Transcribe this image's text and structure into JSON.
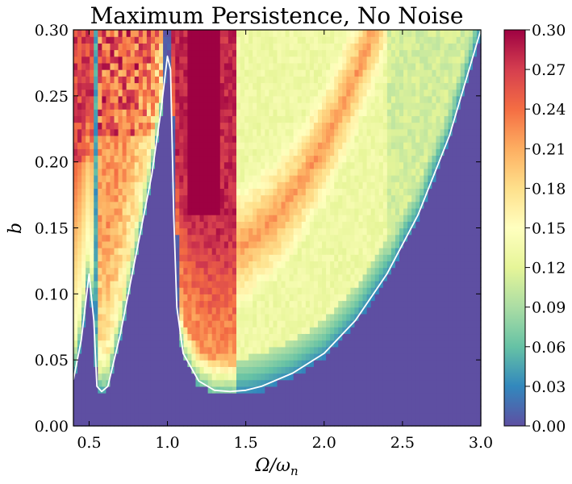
{
  "chart_data": {
    "type": "heatmap",
    "title": "Maximum Persistence, No Noise",
    "xlabel": "Ω/ω",
    "xlabel_sub": "n",
    "ylabel": "b",
    "xlim": [
      0.4,
      3.0
    ],
    "ylim": [
      0.0,
      0.3
    ],
    "x_ticks": [
      {
        "value": 0.5,
        "label": "0.5"
      },
      {
        "value": 1.0,
        "label": "1.0"
      },
      {
        "value": 1.5,
        "label": "1.5"
      },
      {
        "value": 2.0,
        "label": "2.0"
      },
      {
        "value": 2.5,
        "label": "2.5"
      },
      {
        "value": 3.0,
        "label": "3.0"
      }
    ],
    "y_ticks": [
      {
        "value": 0.0,
        "label": "0.00"
      },
      {
        "value": 0.05,
        "label": "0.05"
      },
      {
        "value": 0.1,
        "label": "0.10"
      },
      {
        "value": 0.15,
        "label": "0.15"
      },
      {
        "value": 0.2,
        "label": "0.20"
      },
      {
        "value": 0.25,
        "label": "0.25"
      },
      {
        "value": 0.3,
        "label": "0.30"
      }
    ],
    "colorbar": {
      "min": 0.0,
      "max": 0.3,
      "colormap": "Spectral_r",
      "ticks": [
        {
          "value": 0.0,
          "label": "0.00"
        },
        {
          "value": 0.03,
          "label": "0.03"
        },
        {
          "value": 0.06,
          "label": "0.06"
        },
        {
          "value": 0.09,
          "label": "0.09"
        },
        {
          "value": 0.12,
          "label": "0.12"
        },
        {
          "value": 0.15,
          "label": "0.15"
        },
        {
          "value": 0.18,
          "label": "0.18"
        },
        {
          "value": 0.21,
          "label": "0.21"
        },
        {
          "value": 0.24,
          "label": "0.24"
        },
        {
          "value": 0.27,
          "label": "0.27"
        },
        {
          "value": 0.3,
          "label": "0.30"
        }
      ]
    },
    "boundary_curve": {
      "color": "#ffffff",
      "x": [
        0.4,
        0.45,
        0.5,
        0.53,
        0.55,
        0.58,
        0.62,
        0.7,
        0.8,
        0.9,
        0.96,
        1.0,
        1.02,
        1.04,
        1.06,
        1.1,
        1.2,
        1.3,
        1.4,
        1.5,
        1.6,
        1.8,
        2.0,
        2.2,
        2.4,
        2.6,
        2.8,
        2.95,
        3.0
      ],
      "y": [
        0.035,
        0.065,
        0.115,
        0.08,
        0.03,
        0.026,
        0.03,
        0.07,
        0.13,
        0.19,
        0.24,
        0.28,
        0.27,
        0.16,
        0.09,
        0.055,
        0.034,
        0.027,
        0.026,
        0.027,
        0.03,
        0.04,
        0.055,
        0.08,
        0.115,
        0.16,
        0.22,
        0.28,
        0.3
      ]
    },
    "grid": false
  }
}
